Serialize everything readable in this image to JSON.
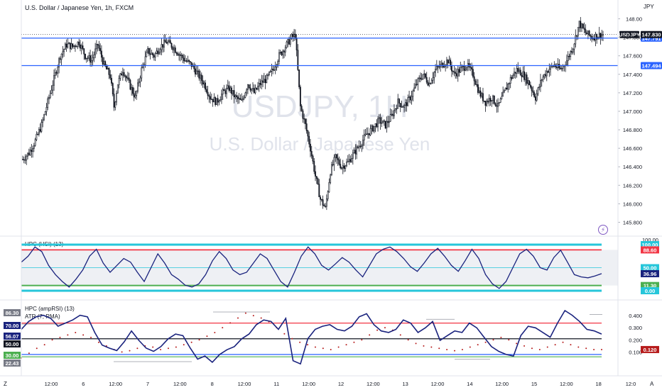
{
  "chart_data": [
    {
      "type": "candlestick",
      "title": "U.S. Dollar / Japanese Yen, 1h, FXCM",
      "watermark_symbol": "USDJPY, 1H",
      "watermark_name": "U.S. Dollar / Japanese Yen",
      "currency": "JPY",
      "symbol": "USDJPY",
      "ylim": [
        145.75,
        148.05
      ],
      "y_ticks": [
        "148.00",
        "147.800",
        "147.600",
        "147.400",
        "147.200",
        "147.000",
        "146.800",
        "146.600",
        "146.400",
        "146.200",
        "146.000",
        "145.800"
      ],
      "last_price": 147.83,
      "last_price_label": "147.830",
      "horizontal_lines": [
        {
          "value": 147.791,
          "label": "147.791",
          "color": "#2962ff"
        },
        {
          "value": 147.494,
          "label": "147.494",
          "color": "#2962ff"
        }
      ],
      "close_path": [
        [
          0,
          146.48
        ],
        [
          5,
          146.55
        ],
        [
          10,
          146.68
        ],
        [
          15,
          146.85
        ],
        [
          20,
          147.1
        ],
        [
          25,
          147.35
        ],
        [
          30,
          147.6
        ],
        [
          35,
          147.72
        ],
        [
          40,
          147.7
        ],
        [
          45,
          147.75
        ],
        [
          50,
          147.6
        ],
        [
          55,
          147.55
        ],
        [
          60,
          147.72
        ],
        [
          65,
          147.5
        ],
        [
          70,
          147.38
        ],
        [
          73,
          147.05
        ],
        [
          76,
          147.3
        ],
        [
          80,
          147.45
        ],
        [
          85,
          147.3
        ],
        [
          90,
          147.15
        ],
        [
          95,
          147.45
        ],
        [
          100,
          147.65
        ],
        [
          105,
          147.6
        ],
        [
          110,
          147.7
        ],
        [
          115,
          147.75
        ],
        [
          120,
          147.7
        ],
        [
          125,
          147.62
        ],
        [
          130,
          147.55
        ],
        [
          135,
          147.5
        ],
        [
          140,
          147.4
        ],
        [
          145,
          147.3
        ],
        [
          150,
          147.15
        ],
        [
          155,
          147.1
        ],
        [
          160,
          147.2
        ],
        [
          165,
          147.25
        ],
        [
          170,
          147.15
        ],
        [
          175,
          147.1
        ],
        [
          180,
          147.3
        ],
        [
          185,
          147.2
        ],
        [
          190,
          147.3
        ],
        [
          195,
          147.35
        ],
        [
          200,
          147.45
        ],
        [
          205,
          147.6
        ],
        [
          210,
          147.7
        ],
        [
          215,
          147.8
        ],
        [
          218,
          147.82
        ],
        [
          222,
          147.05
        ],
        [
          226,
          146.85
        ],
        [
          230,
          146.6
        ],
        [
          234,
          146.3
        ],
        [
          238,
          146.05
        ],
        [
          242,
          145.95
        ],
        [
          246,
          146.35
        ],
        [
          250,
          146.5
        ],
        [
          255,
          146.4
        ],
        [
          260,
          146.45
        ],
        [
          265,
          146.55
        ],
        [
          270,
          146.65
        ],
        [
          275,
          146.75
        ],
        [
          280,
          146.82
        ],
        [
          285,
          146.9
        ],
        [
          290,
          146.85
        ],
        [
          295,
          146.95
        ],
        [
          300,
          147.1
        ],
        [
          305,
          147.05
        ],
        [
          310,
          147.15
        ],
        [
          315,
          147.3
        ],
        [
          320,
          147.4
        ],
        [
          325,
          147.3
        ],
        [
          330,
          147.45
        ],
        [
          335,
          147.5
        ],
        [
          340,
          147.55
        ],
        [
          345,
          147.4
        ],
        [
          350,
          147.45
        ],
        [
          355,
          147.5
        ],
        [
          360,
          147.4
        ],
        [
          365,
          147.2
        ],
        [
          370,
          147.1
        ],
        [
          375,
          147.15
        ],
        [
          380,
          147.05
        ],
        [
          385,
          147.2
        ],
        [
          390,
          147.35
        ],
        [
          395,
          147.45
        ],
        [
          400,
          147.4
        ],
        [
          405,
          147.3
        ],
        [
          410,
          147.15
        ],
        [
          415,
          147.35
        ],
        [
          420,
          147.45
        ],
        [
          425,
          147.5
        ],
        [
          430,
          147.45
        ],
        [
          435,
          147.55
        ],
        [
          440,
          147.7
        ],
        [
          445,
          147.95
        ],
        [
          450,
          147.85
        ],
        [
          455,
          147.8
        ],
        [
          460,
          147.82
        ],
        [
          464,
          147.83
        ]
      ]
    },
    {
      "type": "line",
      "title": "HPC (HSI) (13)",
      "ylim": [
        0,
        100
      ],
      "top_tick": "100.00",
      "levels": [
        {
          "value": 100,
          "label": "100.00",
          "color": "#26c6da"
        },
        {
          "value": 88.6,
          "label": "88.60",
          "color": "#f23645"
        },
        {
          "value": 50,
          "label": "50.00",
          "color": "#26c6da"
        },
        {
          "value": 11.3,
          "label": "11.30",
          "color": "#4caf50"
        },
        {
          "value": 0,
          "label": "0.00",
          "color": "#26c6da"
        }
      ],
      "current": 36.96,
      "current_label": "36.96",
      "values": [
        62,
        75,
        95,
        85,
        55,
        35,
        20,
        8,
        25,
        45,
        75,
        90,
        60,
        40,
        55,
        70,
        62,
        40,
        20,
        50,
        80,
        60,
        35,
        25,
        12,
        8,
        15,
        35,
        65,
        85,
        70,
        45,
        35,
        40,
        60,
        80,
        70,
        45,
        20,
        8,
        40,
        75,
        95,
        80,
        55,
        45,
        58,
        72,
        62,
        45,
        30,
        55,
        80,
        90,
        95,
        85,
        70,
        52,
        42,
        60,
        80,
        92,
        75,
        55,
        42,
        65,
        90,
        70,
        35,
        15,
        5,
        20,
        50,
        80,
        90,
        75,
        50,
        45,
        72,
        88,
        62,
        35,
        30,
        28,
        32,
        37
      ]
    },
    {
      "type": "line",
      "title": "HPC (ampRSI) (13)",
      "subtitle": "ATR (7, RMA)",
      "ylim": [
        -0.05,
        0.5
      ],
      "left_ticks": [
        "86.30",
        "70.00",
        "56.07",
        "50.00",
        "30.00",
        "22.43"
      ],
      "right_ticks": [
        "0.400",
        "0.300",
        "0.200",
        "0.100"
      ],
      "atr_last": "0.120",
      "level_lines": [
        {
          "value": 70,
          "color": "#f23645"
        },
        {
          "value": 50,
          "color": "#131722"
        },
        {
          "value": 30,
          "color": "#2962ff"
        },
        {
          "value": 27,
          "color": "#4caf50"
        }
      ],
      "rsi_values": [
        62,
        72,
        78,
        80,
        76,
        66,
        70,
        74,
        80,
        78,
        58,
        42,
        38,
        35,
        46,
        60,
        48,
        38,
        34,
        40,
        50,
        56,
        54,
        38,
        24,
        28,
        20,
        30,
        36,
        40,
        50,
        56,
        68,
        74,
        72,
        62,
        76,
        22,
        18,
        50,
        62,
        66,
        68,
        62,
        60,
        66,
        78,
        82,
        68,
        60,
        58,
        62,
        74,
        70,
        58,
        64,
        72,
        48,
        54,
        60,
        58,
        70,
        64,
        52,
        40,
        34,
        30,
        28,
        54,
        66,
        64,
        58,
        52,
        70,
        86,
        80,
        72,
        62,
        60,
        56
      ],
      "atr_values": [
        0.05,
        0.09,
        0.13,
        0.16,
        0.2,
        0.22,
        0.24,
        0.26,
        0.24,
        0.22,
        0.18,
        0.15,
        0.12,
        0.1,
        0.11,
        0.13,
        0.15,
        0.14,
        0.12,
        0.13,
        0.14,
        0.16,
        0.18,
        0.2,
        0.23,
        0.26,
        0.3,
        0.34,
        0.38,
        0.42,
        0.4,
        0.38,
        0.35,
        0.3,
        0.25,
        0.21,
        0.18,
        0.16,
        0.14,
        0.13,
        0.12,
        0.14,
        0.16,
        0.18,
        0.2,
        0.24,
        0.28,
        0.3,
        0.28,
        0.24,
        0.2,
        0.17,
        0.15,
        0.14,
        0.13,
        0.12,
        0.11,
        0.12,
        0.14,
        0.16,
        0.18,
        0.2,
        0.22,
        0.2,
        0.17,
        0.15,
        0.13,
        0.12,
        0.14,
        0.16,
        0.18,
        0.16,
        0.14,
        0.13,
        0.12,
        0.12
      ]
    }
  ],
  "x_axis": {
    "labels": [
      "12:00",
      "6",
      "12:00",
      "7",
      "12:00",
      "8",
      "12:00",
      "11",
      "12:00",
      "12",
      "12:00",
      "13",
      "12:00",
      "14",
      "12:00",
      "15",
      "12:00",
      "18",
      "12:0"
    ],
    "corner_left": "Z",
    "corner_right": "A"
  },
  "scroll_icon": "lightning-icon",
  "colors": {
    "up_candle": "#ffffff",
    "down_candle": "#131722",
    "hsi_line": "#1a237e",
    "rsi_line": "#1a237e",
    "atr_dots": "#b71c1c",
    "price_line": "#2962ff"
  }
}
